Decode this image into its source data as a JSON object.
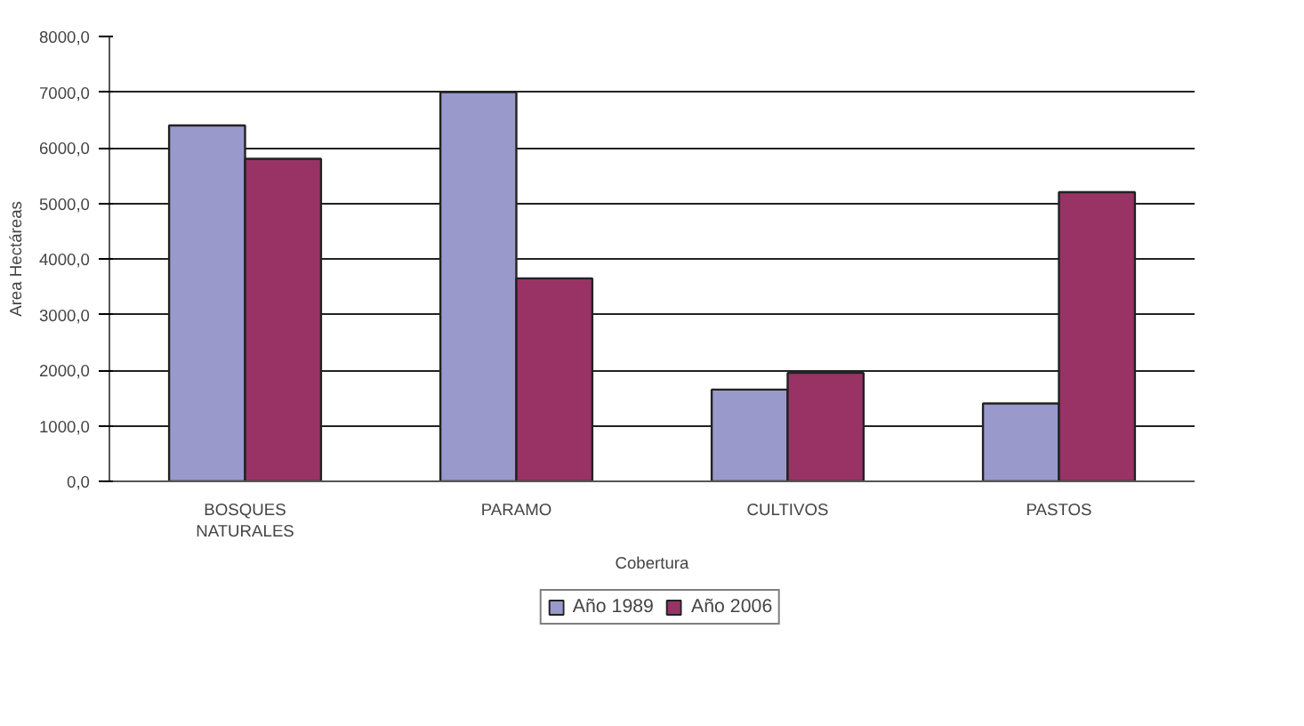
{
  "chart_data": {
    "type": "bar",
    "xlabel": "Cobertura",
    "ylabel": "Area Hectáreas",
    "categories": [
      "BOSQUES\nNATURALES",
      "PARAMO",
      "CULTIVOS",
      "PASTOS"
    ],
    "series": [
      {
        "name": "Año 1989",
        "color": "#9999cc",
        "values": [
          6400,
          7000,
          1650,
          1400
        ]
      },
      {
        "name": "Año 2006",
        "color": "#993366",
        "values": [
          5800,
          3650,
          1950,
          5200
        ]
      }
    ],
    "ylim": [
      0,
      8000
    ],
    "yticks": [
      {
        "value": 0,
        "label": "0,0"
      },
      {
        "value": 1000,
        "label": "1000,0"
      },
      {
        "value": 2000,
        "label": "2000,0"
      },
      {
        "value": 3000,
        "label": "3000,0"
      },
      {
        "value": 4000,
        "label": "4000,0"
      },
      {
        "value": 5000,
        "label": "5000,0"
      },
      {
        "value": 6000,
        "label": "6000,0"
      },
      {
        "value": 7000,
        "label": "7000,0"
      },
      {
        "value": 8000,
        "label": "8000,0"
      }
    ],
    "grid": "y",
    "legend": "bottom"
  }
}
